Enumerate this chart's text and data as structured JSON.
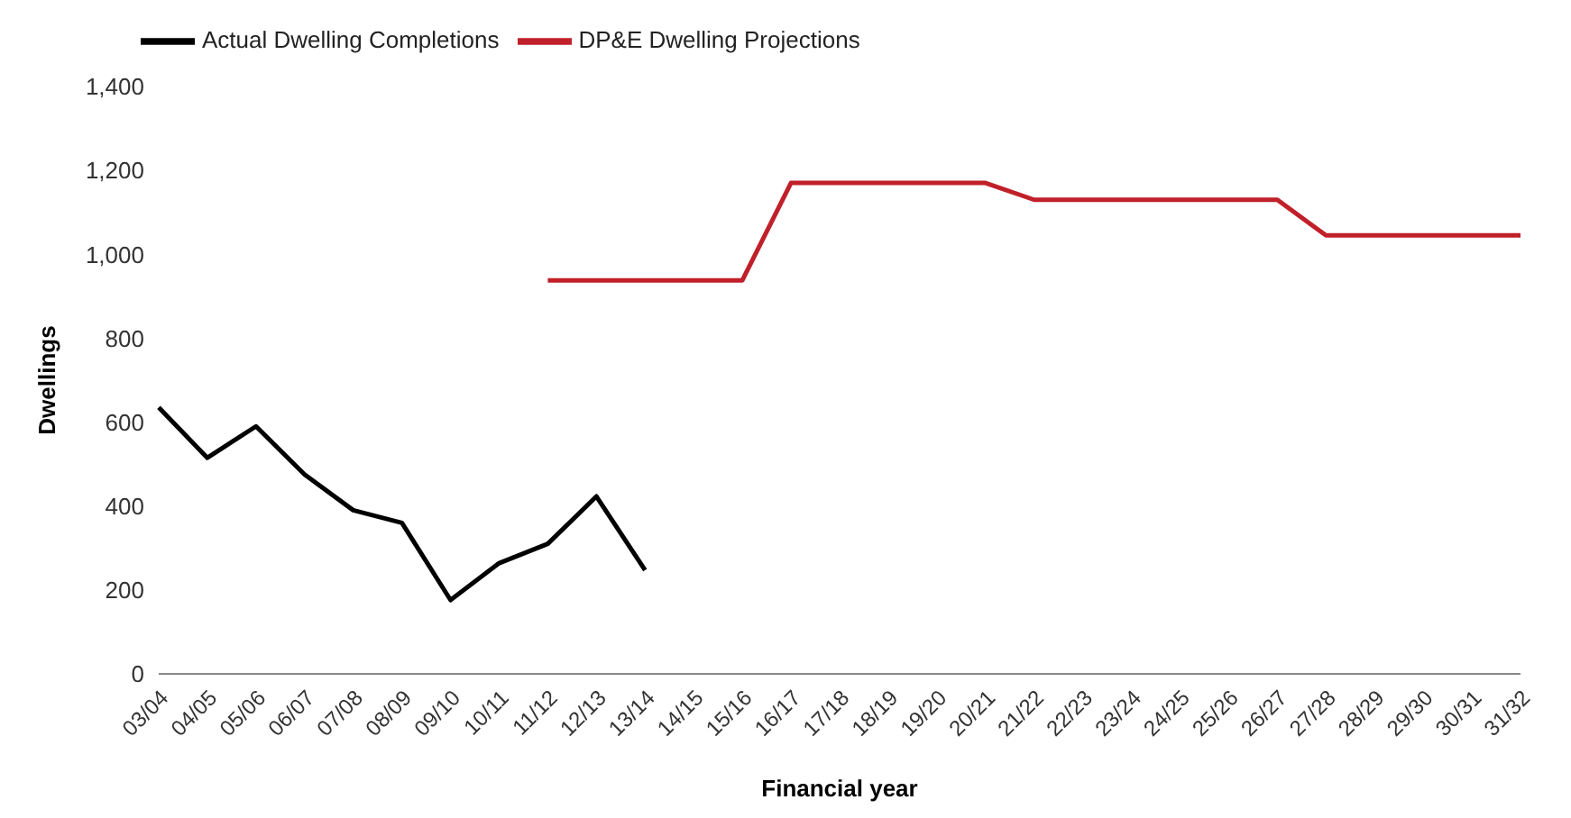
{
  "chart_data": {
    "type": "line",
    "xlabel": "Financial year",
    "ylabel": "Dwellings",
    "categories": [
      "03/04",
      "04/05",
      "05/06",
      "06/07",
      "07/08",
      "08/09",
      "09/10",
      "10/11",
      "11/12",
      "12/13",
      "13/14",
      "14/15",
      "15/16",
      "16/17",
      "17/18",
      "18/19",
      "19/20",
      "20/21",
      "21/22",
      "22/23",
      "23/24",
      "24/25",
      "25/26",
      "26/27",
      "27/28",
      "28/29",
      "29/30",
      "30/31",
      "31/32"
    ],
    "series": [
      {
        "name": "Actual Dwelling Completions",
        "color": "#000000",
        "values": [
          635,
          515,
          590,
          475,
          390,
          360,
          176,
          264,
          310,
          423,
          247,
          null,
          null,
          null,
          null,
          null,
          null,
          null,
          null,
          null,
          null,
          null,
          null,
          null,
          null,
          null,
          null,
          null,
          null
        ]
      },
      {
        "name": "DP&E Dwelling Projections",
        "color": "#c0202a",
        "values": [
          null,
          null,
          null,
          null,
          null,
          null,
          null,
          null,
          938,
          938,
          938,
          938,
          938,
          1170,
          1170,
          1170,
          1170,
          1170,
          1130,
          1130,
          1130,
          1130,
          1130,
          1130,
          1045,
          1045,
          1045,
          1045,
          1045
        ]
      }
    ],
    "ylim": [
      0,
      1400
    ],
    "yticks": [
      0,
      200,
      400,
      600,
      800,
      {
        "value": 1000,
        "label": "1,000"
      },
      {
        "value": 1200,
        "label": "1,200"
      },
      {
        "value": 1400,
        "label": "1,400"
      }
    ],
    "grid": false,
    "legend": "top left",
    "marker": "none",
    "line_style": "solid"
  }
}
